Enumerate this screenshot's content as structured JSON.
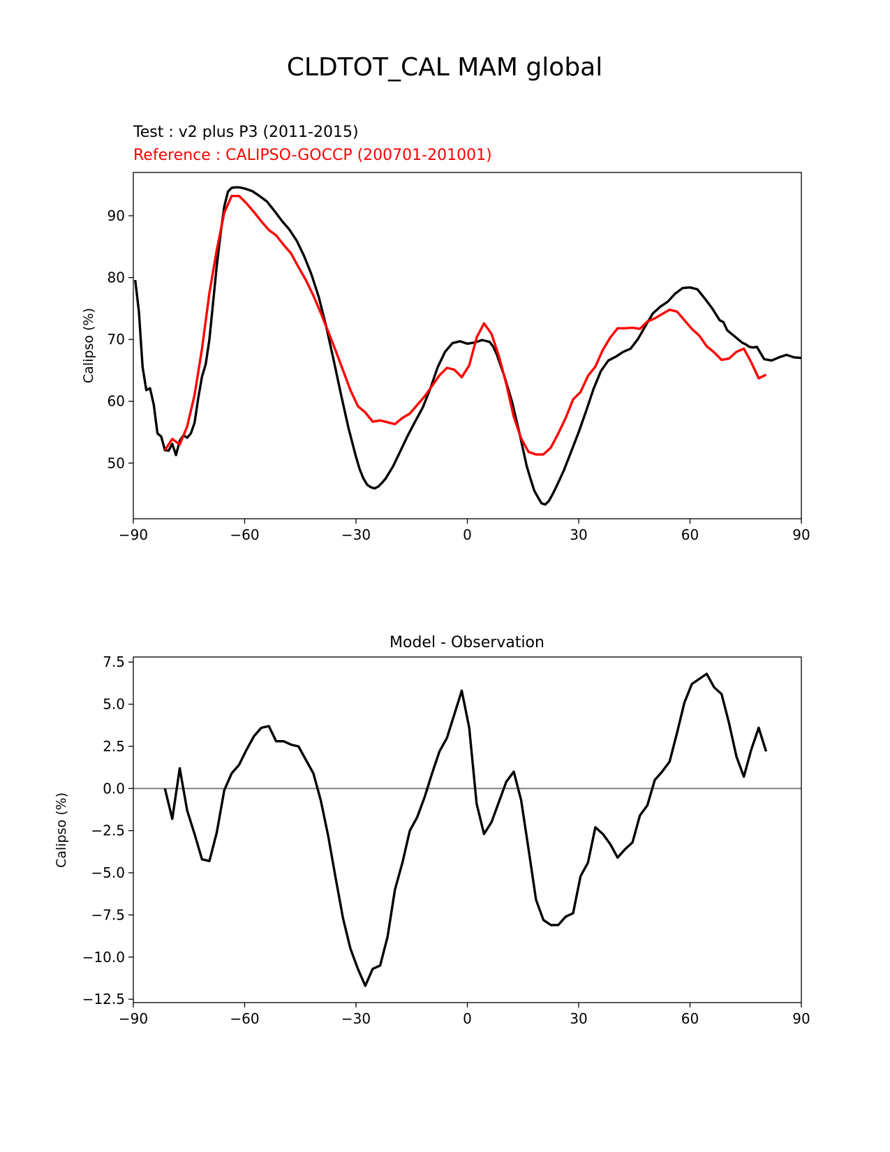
{
  "figure": {
    "title": "CLDTOT_CAL MAM global"
  },
  "chart_data": [
    {
      "type": "line",
      "test_label": "Test : v2 plus P3 (2011-2015)",
      "reference_label": "Reference : CALIPSO-GOCCP (200701-201001)",
      "xlabel": "",
      "ylabel": "Calipso (%)",
      "xlim": [
        -90,
        90
      ],
      "ylim": [
        41,
        97
      ],
      "xticks": [
        -90,
        -60,
        -30,
        0,
        30,
        60,
        90
      ],
      "xtick_labels": [
        "−90",
        "−60",
        "−30",
        "0",
        "30",
        "60",
        "90"
      ],
      "yticks": [
        50,
        60,
        70,
        80,
        90
      ],
      "ytick_labels": [
        "50",
        "60",
        "70",
        "80",
        "90"
      ],
      "grid": false,
      "series": [
        {
          "color": "#000000",
          "x": [
            -89.5,
            -88.5,
            -87.5,
            -86.5,
            -85.5,
            -84.5,
            -83.5,
            -82.5,
            -81.5,
            -80.5,
            -79.5,
            -78.5,
            -77.5,
            -76.5,
            -75.5,
            -74.5,
            -73.5,
            -72.5,
            -71.5,
            -70.5,
            -69.5,
            -68.5,
            -67.5,
            -66.5,
            -65.5,
            -64.5,
            -63.5,
            -62.5,
            -61.5,
            -60,
            -58,
            -56,
            -54,
            -52,
            -50,
            -48,
            -46,
            -44,
            -42,
            -40,
            -38,
            -36,
            -34,
            -32,
            -30,
            -29,
            -28,
            -27,
            -26,
            -25,
            -24,
            -23,
            -22,
            -20,
            -18,
            -16,
            -14,
            -12,
            -10,
            -8,
            -6,
            -4,
            -2,
            0,
            2,
            4,
            6,
            7,
            8,
            10,
            12,
            14,
            16,
            17,
            18,
            19,
            20,
            21,
            22,
            23,
            24,
            26,
            28,
            30,
            32,
            34,
            36,
            38,
            40,
            42,
            44,
            46,
            48,
            50,
            52,
            54,
            56,
            58,
            60,
            62,
            64,
            66,
            68,
            69,
            70,
            72,
            74,
            75,
            76,
            77,
            78,
            79,
            80,
            82,
            84,
            86,
            88,
            90
          ],
          "y": [
            79.6,
            74.5,
            65.5,
            61.8,
            62.1,
            59.5,
            54.8,
            54.3,
            52.1,
            52.0,
            53.1,
            51.3,
            53.6,
            54.5,
            54.1,
            54.8,
            56.5,
            60.5,
            64.0,
            66.0,
            70.0,
            76.0,
            82.0,
            87.0,
            91.5,
            93.9,
            94.5,
            94.6,
            94.6,
            94.4,
            94.0,
            93.2,
            92.3,
            90.8,
            89.2,
            87.8,
            86.0,
            83.5,
            80.5,
            76.8,
            72.0,
            66.6,
            61.0,
            55.6,
            51.0,
            49.0,
            47.5,
            46.5,
            46.1,
            45.9,
            46.2,
            46.8,
            47.5,
            49.5,
            52.0,
            54.5,
            56.8,
            59.0,
            62.0,
            65.5,
            68.0,
            69.4,
            69.7,
            69.3,
            69.5,
            69.9,
            69.6,
            68.8,
            67.5,
            64.0,
            60.0,
            55.0,
            49.5,
            47.5,
            45.6,
            44.5,
            43.5,
            43.3,
            43.9,
            45.0,
            46.2,
            48.8,
            51.9,
            55.0,
            58.4,
            62.0,
            64.9,
            66.6,
            67.2,
            68.0,
            68.5,
            70.1,
            72.2,
            74.2,
            75.3,
            76.1,
            77.4,
            78.3,
            78.4,
            78.1,
            76.6,
            75.0,
            73.1,
            72.8,
            71.5,
            70.5,
            69.5,
            69.2,
            68.8,
            68.7,
            68.8,
            67.8,
            66.8,
            66.6,
            67.1,
            67.5,
            67.1,
            67.0
          ]
        },
        {
          "color": "#ff0000",
          "x": [
            -81.5,
            -79.5,
            -77.5,
            -75.5,
            -73.5,
            -71.5,
            -69.5,
            -67.5,
            -65.5,
            -63.5,
            -61.5,
            -59.5,
            -57.5,
            -55.5,
            -53.5,
            -51.5,
            -49.5,
            -47.5,
            -45.5,
            -43.5,
            -41.5,
            -39.5,
            -37.5,
            -35.5,
            -33.5,
            -31.5,
            -29.5,
            -27.5,
            -25.5,
            -23.5,
            -21.5,
            -19.5,
            -17.5,
            -15.5,
            -13.5,
            -11.5,
            -9.5,
            -7.5,
            -5.5,
            -3.5,
            -1.5,
            0.5,
            2.5,
            4.5,
            6.5,
            8.5,
            10.5,
            12.5,
            14.5,
            16.5,
            18.5,
            20.5,
            22.5,
            24.5,
            26.5,
            28.5,
            30.5,
            32.5,
            34.5,
            36.5,
            38.5,
            40.5,
            42.5,
            44.5,
            46.5,
            48.5,
            50.5,
            52.5,
            54.5,
            56.5,
            58.5,
            60.5,
            62.5,
            64.5,
            66.5,
            68.5,
            70.5,
            72.5,
            74.5,
            76.5,
            78.5,
            80.5
          ],
          "y": [
            52.1,
            53.9,
            53.0,
            55.9,
            61.0,
            68.5,
            77.5,
            84.5,
            90.5,
            93.2,
            93.2,
            92.0,
            90.6,
            89.1,
            87.7,
            86.8,
            85.3,
            83.9,
            81.7,
            79.6,
            77.1,
            74.3,
            71.3,
            68.2,
            65.0,
            61.8,
            59.2,
            58.2,
            56.7,
            56.9,
            56.6,
            56.3,
            57.3,
            58.0,
            59.4,
            60.8,
            62.5,
            64.2,
            65.4,
            65.1,
            63.9,
            65.8,
            70.3,
            72.6,
            70.9,
            67.3,
            62.8,
            57.5,
            54.0,
            51.8,
            51.4,
            51.4,
            52.5,
            54.8,
            57.3,
            60.3,
            61.5,
            64.1,
            65.6,
            68.3,
            70.3,
            71.8,
            71.8,
            71.9,
            71.7,
            72.9,
            73.4,
            74.1,
            74.8,
            74.5,
            73.1,
            71.7,
            70.6,
            68.9,
            67.9,
            66.7,
            66.9,
            68.0,
            68.5,
            66.3,
            63.7,
            64.3
          ]
        }
      ]
    },
    {
      "type": "line",
      "title": "Model - Observation",
      "xlabel": "",
      "ylabel": "Calipso (%)",
      "xlim": [
        -90,
        90
      ],
      "ylim": [
        -12.7,
        7.8
      ],
      "xticks": [
        -90,
        -60,
        -30,
        0,
        30,
        60,
        90
      ],
      "xtick_labels": [
        "−90",
        "−60",
        "−30",
        "0",
        "30",
        "60",
        "90"
      ],
      "yticks": [
        7.5,
        5.0,
        2.5,
        0.0,
        -2.5,
        -5.0,
        -7.5,
        -10.0,
        -12.5
      ],
      "ytick_labels": [
        "7.5",
        "5.0",
        "2.5",
        "0.0",
        "−2.5",
        "−5.0",
        "−7.5",
        "−10.0",
        "−12.5"
      ],
      "grid": false,
      "reference_line": {
        "y": 0,
        "color": "#808080"
      },
      "series": [
        {
          "color": "#000000",
          "x": [
            -81.5,
            -79.5,
            -77.5,
            -75.5,
            -73.5,
            -71.5,
            -69.5,
            -67.5,
            -65.5,
            -63.5,
            -61.5,
            -59.5,
            -57.5,
            -55.5,
            -53.5,
            -51.5,
            -49.5,
            -47.5,
            -45.5,
            -43.5,
            -41.5,
            -39.5,
            -37.5,
            -35.5,
            -33.5,
            -31.5,
            -29.5,
            -27.5,
            -25.5,
            -23.5,
            -21.5,
            -19.5,
            -17.5,
            -15.5,
            -13.5,
            -11.5,
            -9.5,
            -7.5,
            -5.5,
            -3.5,
            -1.5,
            0.5,
            2.5,
            4.5,
            6.5,
            8.5,
            10.5,
            12.5,
            14.5,
            16.5,
            18.5,
            20.5,
            22.5,
            24.5,
            26.5,
            28.5,
            30.5,
            32.5,
            34.5,
            36.5,
            38.5,
            40.5,
            42.5,
            44.5,
            46.5,
            48.5,
            50.5,
            52.5,
            54.5,
            56.5,
            58.5,
            60.5,
            62.5,
            64.5,
            66.5,
            68.5,
            70.5,
            72.5,
            74.5,
            76.5,
            78.5,
            80.5
          ],
          "y": [
            0.0,
            -1.8,
            1.2,
            -1.3,
            -2.7,
            -4.2,
            -4.3,
            -2.6,
            -0.1,
            0.9,
            1.4,
            2.3,
            3.1,
            3.6,
            3.7,
            2.8,
            2.8,
            2.6,
            2.5,
            1.7,
            0.9,
            -0.7,
            -2.8,
            -5.3,
            -7.7,
            -9.5,
            -10.7,
            -11.7,
            -10.7,
            -10.5,
            -8.8,
            -6.0,
            -4.4,
            -2.5,
            -1.7,
            -0.5,
            0.9,
            2.2,
            3.0,
            4.4,
            5.8,
            3.6,
            -0.9,
            -2.7,
            -2.0,
            -0.8,
            0.4,
            1.0,
            -0.7,
            -3.6,
            -6.6,
            -7.8,
            -8.1,
            -8.1,
            -7.6,
            -7.4,
            -5.2,
            -4.4,
            -2.3,
            -2.7,
            -3.3,
            -4.1,
            -3.6,
            -3.2,
            -1.6,
            -1.0,
            0.5,
            1.0,
            1.6,
            3.3,
            5.1,
            6.2,
            6.5,
            6.8,
            6.0,
            5.6,
            3.9,
            1.9,
            0.7,
            2.3,
            3.6,
            2.2
          ]
        }
      ]
    }
  ]
}
